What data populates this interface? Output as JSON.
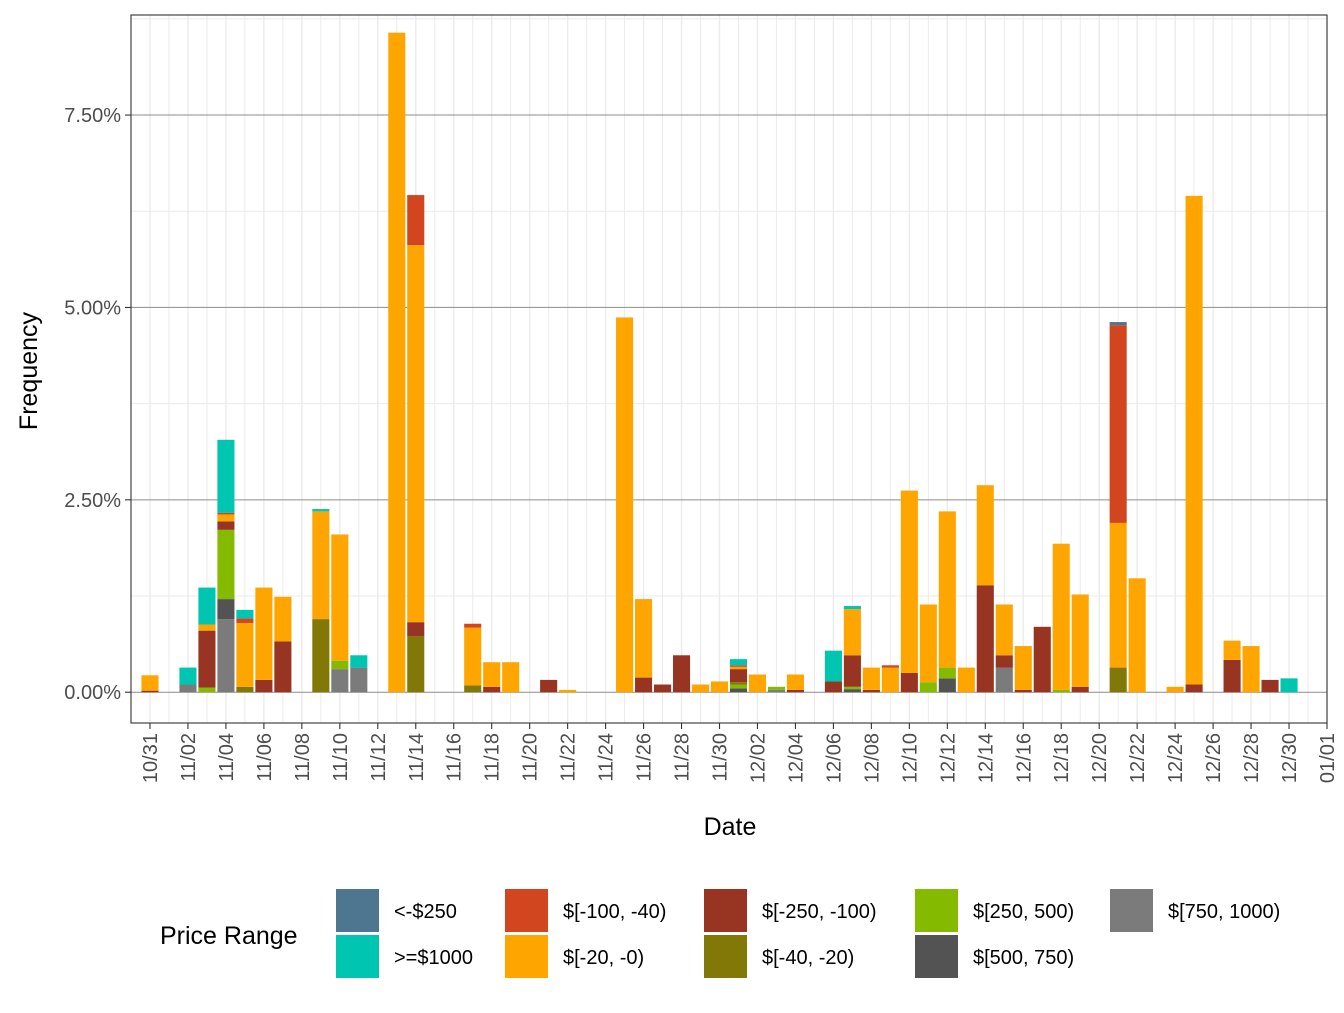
{
  "chart_data": {
    "type": "bar",
    "stacked": true,
    "title": "",
    "xlabel": "Date",
    "ylabel": "Frequency",
    "x_domain": [
      "2021-10-30",
      "2022-01-01"
    ],
    "ylim": [
      -0.004,
      0.088
    ],
    "y_ticks": [
      0,
      0.025,
      0.05,
      0.075
    ],
    "y_tick_labels": [
      "0.00%",
      "2.50%",
      "5.00%",
      "7.50%"
    ],
    "x_ticks": [
      "2021-10-31",
      "2021-11-02",
      "2021-11-04",
      "2021-11-06",
      "2021-11-08",
      "2021-11-10",
      "2021-11-12",
      "2021-11-14",
      "2021-11-16",
      "2021-11-18",
      "2021-11-20",
      "2021-11-22",
      "2021-11-24",
      "2021-11-26",
      "2021-11-28",
      "2021-11-30",
      "2021-12-02",
      "2021-12-04",
      "2021-12-06",
      "2021-12-08",
      "2021-12-10",
      "2021-12-12",
      "2021-12-14",
      "2021-12-16",
      "2021-12-18",
      "2021-12-20",
      "2021-12-22",
      "2021-12-24",
      "2021-12-26",
      "2021-12-28",
      "2021-12-30",
      "2022-01-01"
    ],
    "x_tick_labels": [
      "10/31",
      "11/02",
      "11/04",
      "11/06",
      "11/08",
      "11/10",
      "11/12",
      "11/14",
      "11/16",
      "11/18",
      "11/20",
      "11/22",
      "11/24",
      "11/26",
      "11/28",
      "11/30",
      "12/02",
      "12/04",
      "12/06",
      "12/08",
      "12/10",
      "12/12",
      "12/14",
      "12/16",
      "12/18",
      "12/20",
      "12/22",
      "12/24",
      "12/26",
      "12/28",
      "12/30",
      "01/01"
    ],
    "grid": true,
    "legend": {
      "title": "Price Range",
      "position": "bottom",
      "entries": [
        {
          "name": "<-$250",
          "color": "#4E7690"
        },
        {
          "name": ">=$1000",
          "color": "#00C5B0"
        },
        {
          "name": "$[-100, -40)",
          "color": "#D2461F"
        },
        {
          "name": "$[-20, -0)",
          "color": "#FFA500"
        },
        {
          "name": "$[-250, -100)",
          "color": "#973522"
        },
        {
          "name": "$[-40, -20)",
          "color": "#827807"
        },
        {
          "name": "$[250, 500)",
          "color": "#84BB00"
        },
        {
          "name": "$[500, 750)",
          "color": "#535353"
        },
        {
          "name": "$[750, 1000)",
          "color": "#7B7B7B"
        }
      ]
    },
    "stack_order": [
      "$[750, 1000)",
      "$[500, 750)",
      "$[250, 500)",
      "$[-40, -20)",
      "$[-250, -100)",
      "$[-20, -0)",
      "$[-100, -40)",
      ">=$1000",
      "<-$250"
    ],
    "series": [
      {
        "date": "2021-10-31",
        "values": {
          "$[-250, -100)": 0.0002,
          "$[-20, -0)": 0.002
        }
      },
      {
        "date": "2021-11-02",
        "values": {
          "$[750, 1000)": 0.001,
          ">=$1000": 0.0022
        }
      },
      {
        "date": "2021-11-03",
        "values": {
          "$[250, 500)": 0.0006,
          "$[-250, -100)": 0.0074,
          "$[-20, -0)": 0.0008,
          ">=$1000": 0.0048
        }
      },
      {
        "date": "2021-11-04",
        "values": {
          "$[750, 1000)": 0.0095,
          "$[500, 750)": 0.0026,
          "$[250, 500)": 0.009,
          "$[-250, -100)": 0.0011,
          "$[-100, -40)": 0.0002,
          "$[-20, -0)": 0.0009,
          ">=$1000": 0.0095
        }
      },
      {
        "date": "2021-11-05",
        "values": {
          "$[-40, -20)": 0.0007,
          "$[-20, -0)": 0.0083,
          "$[-100, -40)": 0.0006,
          ">=$1000": 0.0011
        }
      },
      {
        "date": "2021-11-06",
        "values": {
          "$[-250, -100)": 0.0016,
          "$[-20, -0)": 0.012
        }
      },
      {
        "date": "2021-11-07",
        "values": {
          "$[-250, -100)": 0.0066,
          "$[-20, -0)": 0.0058
        }
      },
      {
        "date": "2021-11-09",
        "values": {
          "$[-40, -20)": 0.0095,
          "$[-20, -0)": 0.014,
          ">=$1000": 0.0003
        }
      },
      {
        "date": "2021-11-10",
        "values": {
          "$[750, 1000)": 0.003,
          "$[250, 500)": 0.0011,
          "$[-20, -0)": 0.0164
        }
      },
      {
        "date": "2021-11-11",
        "values": {
          "$[750, 1000)": 0.0032,
          ">=$1000": 0.0016
        }
      },
      {
        "date": "2021-11-13",
        "values": {
          "$[-20, -0)": 0.0857
        }
      },
      {
        "date": "2021-11-14",
        "values": {
          "$[-40, -20)": 0.0073,
          "$[-250, -100)": 0.0018,
          "$[-20, -0)": 0.049,
          "$[-100, -40)": 0.0065
        }
      },
      {
        "date": "2021-11-17",
        "values": {
          "$[-40, -20)": 0.0009,
          "$[-20, -0)": 0.0075,
          "$[-100, -40)": 0.0005
        }
      },
      {
        "date": "2021-11-18",
        "values": {
          "$[-250, -100)": 0.0007,
          "$[-20, -0)": 0.0032
        }
      },
      {
        "date": "2021-11-19",
        "values": {
          "$[-20, -0)": 0.0039
        }
      },
      {
        "date": "2021-11-21",
        "values": {
          "$[-250, -100)": 0.0016
        }
      },
      {
        "date": "2021-11-22",
        "values": {
          "$[-20, -0)": 0.0003
        }
      },
      {
        "date": "2021-11-25",
        "values": {
          "$[-20, -0)": 0.0487
        }
      },
      {
        "date": "2021-11-26",
        "values": {
          "$[-250, -100)": 0.0019,
          "$[-20, -0)": 0.0102
        }
      },
      {
        "date": "2021-11-27",
        "values": {
          "$[-250, -100)": 0.001
        }
      },
      {
        "date": "2021-11-28",
        "values": {
          "$[-250, -100)": 0.0048
        }
      },
      {
        "date": "2021-11-29",
        "values": {
          "$[-20, -0)": 0.001
        }
      },
      {
        "date": "2021-11-30",
        "values": {
          "$[-20, -0)": 0.0014
        }
      },
      {
        "date": "2021-12-01",
        "values": {
          "$[500, 750)": 0.0005,
          "$[250, 500)": 0.0005,
          "$[-40, -20)": 0.0003,
          "$[-250, -100)": 0.0017,
          "$[-20, -0)": 0.0003,
          "$[-100, -40)": 0.0002,
          ">=$1000": 0.0008
        }
      },
      {
        "date": "2021-12-02",
        "values": {
          "$[-20, -0)": 0.0023
        }
      },
      {
        "date": "2021-12-03",
        "values": {
          "$[750, 1000)": 0.0003,
          "$[250, 500)": 0.0004
        }
      },
      {
        "date": "2021-12-04",
        "values": {
          "$[-250, -100)": 0.0003,
          "$[-20, -0)": 0.002
        }
      },
      {
        "date": "2021-12-06",
        "values": {
          "$[-250, -100)": 0.0014,
          ">=$1000": 0.004
        }
      },
      {
        "date": "2021-12-07",
        "values": {
          "$[500, 750)": 0.0004,
          "$[250, 500)": 0.0003,
          "$[-250, -100)": 0.0041,
          "$[-20, -0)": 0.006,
          ">=$1000": 0.0004
        }
      },
      {
        "date": "2021-12-08",
        "values": {
          "$[-250, -100)": 0.0003,
          "$[-20, -0)": 0.0029
        }
      },
      {
        "date": "2021-12-09",
        "values": {
          "$[-20, -0)": 0.0032,
          "$[-100, -40)": 0.0003
        }
      },
      {
        "date": "2021-12-10",
        "values": {
          "$[-250, -100)": 0.0025,
          "$[-20, -0)": 0.0237
        }
      },
      {
        "date": "2021-12-11",
        "values": {
          "$[250, 500)": 0.0013,
          "$[-20, -0)": 0.0101
        }
      },
      {
        "date": "2021-12-12",
        "values": {
          "$[500, 750)": 0.0018,
          "$[250, 500)": 0.0014,
          "$[-20, -0)": 0.0203
        }
      },
      {
        "date": "2021-12-13",
        "values": {
          "$[-20, -0)": 0.0032
        }
      },
      {
        "date": "2021-12-14",
        "values": {
          "$[-250, -100)": 0.0139,
          "$[-20, -0)": 0.013
        }
      },
      {
        "date": "2021-12-15",
        "values": {
          "$[750, 1000)": 0.0032,
          "$[-250, -100)": 0.0016,
          "$[-20, -0)": 0.0066
        }
      },
      {
        "date": "2021-12-16",
        "values": {
          "$[-250, -100)": 0.0003,
          "$[-20, -0)": 0.0057
        }
      },
      {
        "date": "2021-12-17",
        "values": {
          "$[-250, -100)": 0.0085
        }
      },
      {
        "date": "2021-12-18",
        "values": {
          "$[250, 500)": 0.0003,
          "$[-20, -0)": 0.019
        }
      },
      {
        "date": "2021-12-19",
        "values": {
          "$[-250, -100)": 0.0007,
          "$[-20, -0)": 0.012
        }
      },
      {
        "date": "2021-12-21",
        "values": {
          "$[-40, -20)": 0.0032,
          "$[-20, -0)": 0.0188,
          "$[-100, -40)": 0.0257,
          "<-$250": 0.0004
        }
      },
      {
        "date": "2021-12-22",
        "values": {
          "$[-20, -0)": 0.0148
        }
      },
      {
        "date": "2021-12-24",
        "values": {
          "$[-20, -0)": 0.0007
        }
      },
      {
        "date": "2021-12-25",
        "values": {
          "$[-250, -100)": 0.001,
          "$[-20, -0)": 0.0635
        }
      },
      {
        "date": "2021-12-27",
        "values": {
          "$[-250, -100)": 0.0042,
          "$[-20, -0)": 0.0025
        }
      },
      {
        "date": "2021-12-28",
        "values": {
          "$[-20, -0)": 0.006
        }
      },
      {
        "date": "2021-12-29",
        "values": {
          "$[-250, -100)": 0.0016
        }
      },
      {
        "date": "2021-12-30",
        "values": {
          ">=$1000": 0.0018
        }
      }
    ]
  }
}
